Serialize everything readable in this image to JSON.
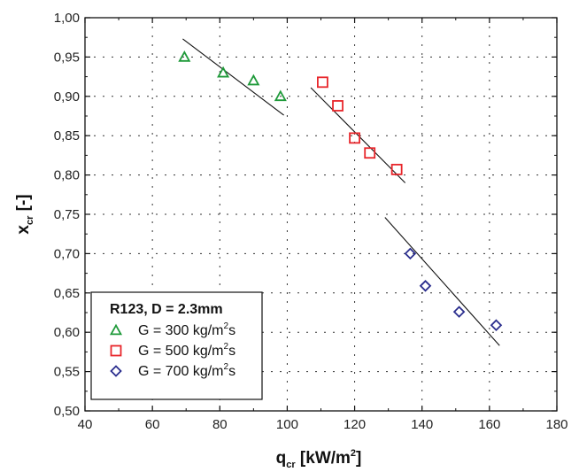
{
  "chart_data": {
    "type": "scatter",
    "title": "",
    "xlabel": "q",
    "xlabel_sub": "cr",
    "xlabel_unit": " [kW/m",
    "xlabel_unit_sup": "2",
    "xlabel_unit_end": "]",
    "ylabel": "x",
    "ylabel_sub": "cr",
    "ylabel_unit": " [-]",
    "xlim": [
      40,
      180
    ],
    "ylim": [
      0.5,
      1.0
    ],
    "xticks": [
      {
        "v": 40,
        "label": "40"
      },
      {
        "v": 60,
        "label": "60"
      },
      {
        "v": 80,
        "label": "80"
      },
      {
        "v": 100,
        "label": "100"
      },
      {
        "v": 120,
        "label": "120"
      },
      {
        "v": 140,
        "label": "140"
      },
      {
        "v": 160,
        "label": "160"
      },
      {
        "v": 180,
        "label": "180"
      }
    ],
    "yticks": [
      {
        "v": 0.5,
        "label": "0,50"
      },
      {
        "v": 0.55,
        "label": "0,55"
      },
      {
        "v": 0.6,
        "label": "0,60"
      },
      {
        "v": 0.65,
        "label": "0,65"
      },
      {
        "v": 0.7,
        "label": "0,70"
      },
      {
        "v": 0.75,
        "label": "0,75"
      },
      {
        "v": 0.8,
        "label": "0,80"
      },
      {
        "v": 0.85,
        "label": "0,85"
      },
      {
        "v": 0.9,
        "label": "0,90"
      },
      {
        "v": 0.95,
        "label": "0,95"
      },
      {
        "v": 1.0,
        "label": "1,00"
      }
    ],
    "grid": true,
    "legend": {
      "placement": "bottom-left",
      "title": "R123, D = 2.3mm"
    },
    "series": [
      {
        "name": "G = 300 kg/m2s",
        "label_pre": "G = 300 kg/m",
        "label_sup": "2",
        "label_post": "s",
        "marker": "triangle",
        "color": "#1f9a3a",
        "x": [
          69.5,
          81,
          90,
          98
        ],
        "y": [
          0.95,
          0.93,
          0.92,
          0.9
        ],
        "fit": {
          "x": [
            69,
            99
          ],
          "y": [
            0.973,
            0.876
          ]
        }
      },
      {
        "name": "G = 500 kg/m2s",
        "label_pre": "G = 500 kg/m",
        "label_sup": "2",
        "label_post": "s",
        "marker": "square",
        "color": "#e8262b",
        "x": [
          110.5,
          115,
          120,
          124.5,
          132.5
        ],
        "y": [
          0.918,
          0.888,
          0.847,
          0.828,
          0.807
        ],
        "fit": {
          "x": [
            107,
            135
          ],
          "y": [
            0.911,
            0.79
          ]
        }
      },
      {
        "name": "G = 700 kg/m2s",
        "label_pre": "G = 700 kg/m",
        "label_sup": "2",
        "label_post": "s",
        "marker": "diamond",
        "color": "#2b2e8e",
        "x": [
          136.5,
          141,
          151,
          162
        ],
        "y": [
          0.7,
          0.659,
          0.626,
          0.609
        ],
        "fit": {
          "x": [
            129,
            163
          ],
          "y": [
            0.746,
            0.583
          ]
        }
      }
    ]
  }
}
